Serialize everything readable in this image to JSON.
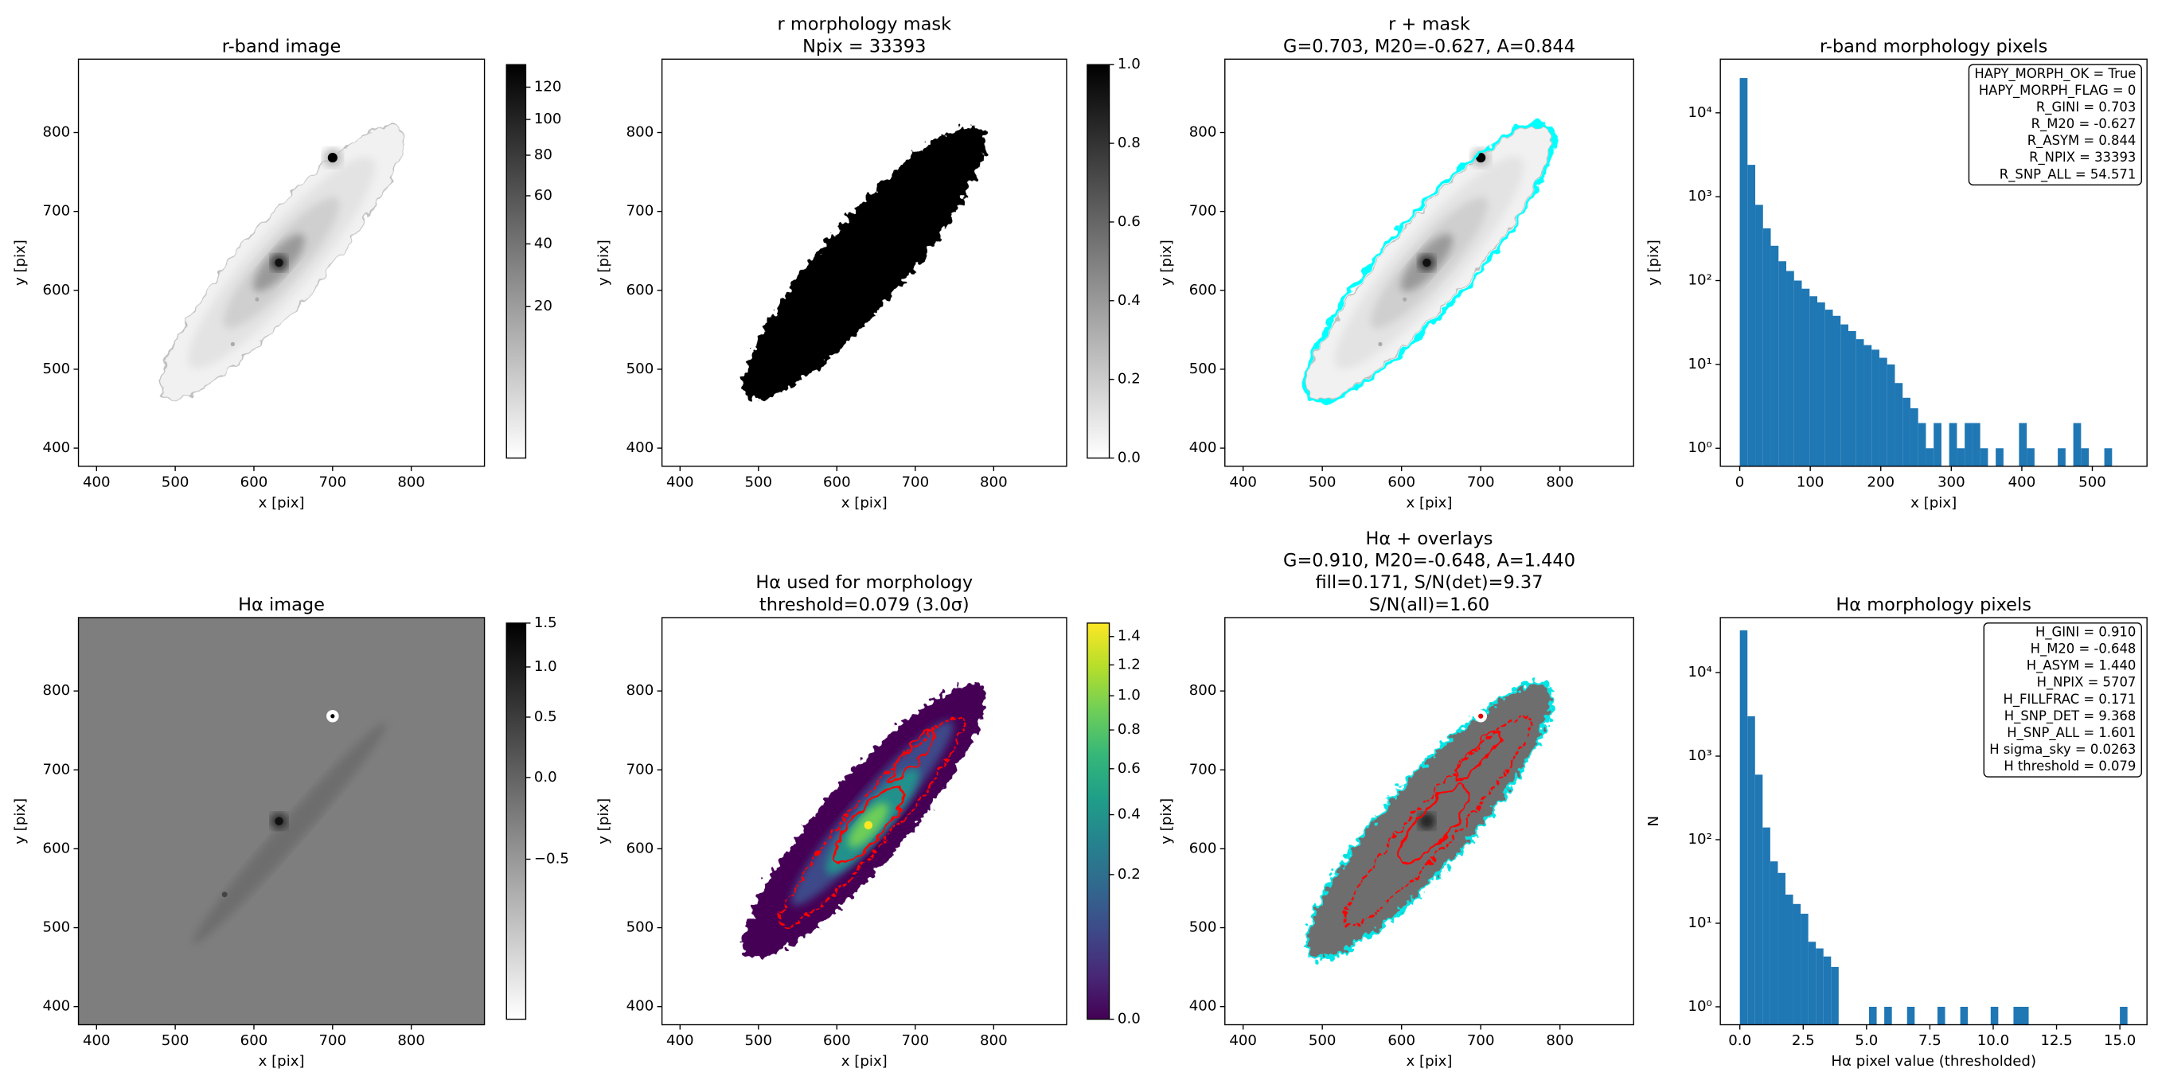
{
  "chart_data": [
    {
      "type": "image",
      "title": [
        "r-band image"
      ],
      "xlabel": "x [pix]",
      "ylabel": "y [pix]",
      "xlim": [
        377,
        893
      ],
      "ylim": [
        377,
        893
      ],
      "xticks": [
        400,
        500,
        600,
        700,
        800
      ],
      "yticks": [
        400,
        500,
        600,
        700,
        800
      ],
      "cmap": "gray_r",
      "colorbar": {
        "clim": [
          0,
          135
        ],
        "scale": "sqrt",
        "ticks": [
          20,
          40,
          60,
          80,
          100,
          120
        ]
      }
    },
    {
      "type": "image",
      "title": [
        "r morphology mask",
        "Npix = 33393"
      ],
      "xlabel": "x [pix]",
      "ylabel": "y [pix]",
      "xlim": [
        377,
        893
      ],
      "ylim": [
        377,
        893
      ],
      "xticks": [
        400,
        500,
        600,
        700,
        800
      ],
      "yticks": [
        400,
        500,
        600,
        700,
        800
      ],
      "cmap": "gray_r",
      "colorbar": {
        "clim": [
          0,
          1
        ],
        "scale": "linear",
        "ticks": [
          {
            "value": 0,
            "label": "0.0"
          },
          0.2,
          0.4,
          0.6,
          0.8,
          {
            "value": 1,
            "label": "1.0"
          }
        ]
      }
    },
    {
      "type": "image",
      "title": [
        "r + mask",
        "G=0.703, M20=-0.627, A=0.844"
      ],
      "xlabel": "x [pix]",
      "ylabel": "y [pix]",
      "xlim": [
        377,
        893
      ],
      "ylim": [
        377,
        893
      ],
      "xticks": [
        400,
        500,
        600,
        700,
        800
      ],
      "yticks": [
        400,
        500,
        600,
        700,
        800
      ],
      "cmap": "gray_r"
    },
    {
      "type": "histogram",
      "title": [
        "r-band morphology pixels"
      ],
      "xlabel": "x [pix]",
      "ylabel": "y [pix]",
      "annotation": [
        "HAPY_MORPH_OK = True",
        "HAPY_MORPH_FLAG = 0",
        "R_GINI = 0.703",
        "R_M20 = -0.627",
        "R_ASYM = 0.844",
        "R_NPIX = 33393",
        "R_SNP_ALL = 54.571"
      ],
      "color": "#1f77b4",
      "log_y": true,
      "bins": [
        0,
        11,
        22,
        33,
        44,
        55,
        66,
        77,
        88,
        99,
        110,
        121,
        132,
        143,
        154,
        165,
        176,
        187,
        198,
        209,
        220,
        231,
        242,
        253,
        264,
        275,
        286,
        297,
        308,
        319,
        330,
        341,
        352,
        363,
        374,
        385,
        396,
        407,
        418,
        429,
        440,
        451,
        462,
        473,
        484,
        495,
        506,
        517,
        528,
        539,
        550
      ],
      "counts": [
        26000,
        2400,
        800,
        420,
        260,
        170,
        130,
        100,
        80,
        65,
        55,
        45,
        38,
        30,
        25,
        20,
        17,
        15,
        12,
        10,
        6,
        4,
        3,
        2,
        1,
        2,
        0,
        2,
        1,
        2,
        2,
        1,
        0,
        1,
        0,
        0,
        2,
        1,
        0,
        0,
        0,
        1,
        0,
        2,
        1,
        0,
        0,
        1,
        0,
        0
      ],
      "xlim": [
        -27.5,
        577.5
      ],
      "ylim": [
        0.61,
        43700
      ],
      "xticks": [
        0,
        100,
        200,
        300,
        400,
        500
      ],
      "yticks": [
        {
          "value": 1,
          "label": "10⁰"
        },
        {
          "value": 10,
          "label": "10¹"
        },
        {
          "value": 100,
          "label": "10²"
        },
        {
          "value": 1000,
          "label": "10³"
        },
        {
          "value": 10000,
          "label": "10⁴"
        }
      ]
    },
    {
      "type": "image",
      "title": [
        "Hα image"
      ],
      "xlabel": "x [pix]",
      "ylabel": "y [pix]",
      "xlim": [
        377,
        893
      ],
      "ylim": [
        377,
        893
      ],
      "xticks": [
        400,
        500,
        600,
        700,
        800
      ],
      "yticks": [
        400,
        500,
        600,
        700,
        800
      ],
      "cmap": "gray_r",
      "colorbar": {
        "clim": [
          -0.89,
          1.5
        ],
        "scale": "sqrt",
        "ticks": [
          {
            "value": -0.5,
            "label": "−0.5"
          },
          {
            "value": 0,
            "label": "0.0"
          },
          0.5,
          {
            "value": 1,
            "label": "1.0"
          },
          1.5
        ]
      }
    },
    {
      "type": "image",
      "title": [
        "Hα used for morphology",
        "threshold=0.079 (3.0σ)"
      ],
      "xlabel": "x [pix]",
      "ylabel": "y [pix]",
      "xlim": [
        377,
        893
      ],
      "ylim": [
        377,
        893
      ],
      "xticks": [
        400,
        500,
        600,
        700,
        800
      ],
      "yticks": [
        400,
        500,
        600,
        700,
        800
      ],
      "cmap": "viridis",
      "colorbar": {
        "clim": [
          0,
          1.5
        ],
        "scale": "sqrt",
        "ticks": [
          {
            "value": 0,
            "label": "0.0"
          },
          0.2,
          0.4,
          0.6,
          0.8,
          {
            "value": 1,
            "label": "1.0"
          },
          1.2,
          1.4
        ]
      }
    },
    {
      "type": "image",
      "title": [
        "Hα + overlays",
        "G=0.910, M20=-0.648, A=1.440",
        "fill=0.171, S/N(det)=9.37",
        "S/N(all)=1.60"
      ],
      "xlabel": "x [pix]",
      "ylabel": "y [pix]",
      "xlim": [
        377,
        893
      ],
      "ylim": [
        377,
        893
      ],
      "xticks": [
        400,
        500,
        600,
        700,
        800
      ],
      "yticks": [
        400,
        500,
        600,
        700,
        800
      ],
      "cmap": "gray_r"
    },
    {
      "type": "histogram",
      "title": [
        "Hα morphology pixels"
      ],
      "xlabel": "Hα pixel value (thresholded)",
      "ylabel": "N",
      "annotation": [
        "H_GINI = 0.910",
        "H_M20 = -0.648",
        "H_ASYM = 1.440",
        "H_NPIX = 5707",
        "H_FILLFRAC = 0.171",
        "H_SNP_DET = 9.368",
        "H_SNP_ALL = 1.601",
        "H sigma_sky = 0.0263",
        "H threshold = 0.079"
      ],
      "color": "#1f77b4",
      "log_y": true,
      "bins": [
        0,
        0.3,
        0.6,
        0.9,
        1.2,
        1.5,
        1.8,
        2.1,
        2.4,
        2.7,
        3,
        3.3,
        3.6,
        3.9,
        4.2,
        4.5,
        4.8,
        5.1,
        5.4,
        5.7,
        6,
        6.3,
        6.6,
        6.9,
        7.2,
        7.5,
        7.8,
        8.1,
        8.4,
        8.7,
        9,
        9.3,
        9.6,
        9.9,
        10.2,
        10.5,
        10.8,
        11.1,
        11.4,
        11.7,
        12,
        12.3,
        12.6,
        12.9,
        13.2,
        13.5,
        13.8,
        14.1,
        14.4,
        14.7,
        15,
        15.3
      ],
      "counts": [
        32000,
        3000,
        600,
        140,
        55,
        40,
        22,
        17,
        13,
        6,
        5,
        4,
        3,
        0,
        0,
        0,
        0,
        1,
        0,
        1,
        0,
        0,
        1,
        0,
        0,
        0,
        1,
        0,
        0,
        1,
        0,
        0,
        0,
        1,
        0,
        0,
        1,
        1,
        0,
        0,
        0,
        0,
        0,
        0,
        0,
        0,
        0,
        0,
        0,
        0,
        1
      ],
      "xlim": [
        -0.77,
        16.07
      ],
      "ylim": [
        0.61,
        45500
      ],
      "xticks": [
        {
          "value": 0,
          "label": "0.0"
        },
        2.5,
        {
          "value": 5,
          "label": "5.0"
        },
        7.5,
        {
          "value": 10,
          "label": "10.0"
        },
        12.5,
        {
          "value": 15,
          "label": "15.0"
        }
      ],
      "yticks": [
        {
          "value": 1,
          "label": "10⁰"
        },
        {
          "value": 10,
          "label": "10¹"
        },
        {
          "value": 100,
          "label": "10²"
        },
        {
          "value": 1000,
          "label": "10³"
        },
        {
          "value": 10000,
          "label": "10⁴"
        }
      ]
    }
  ]
}
